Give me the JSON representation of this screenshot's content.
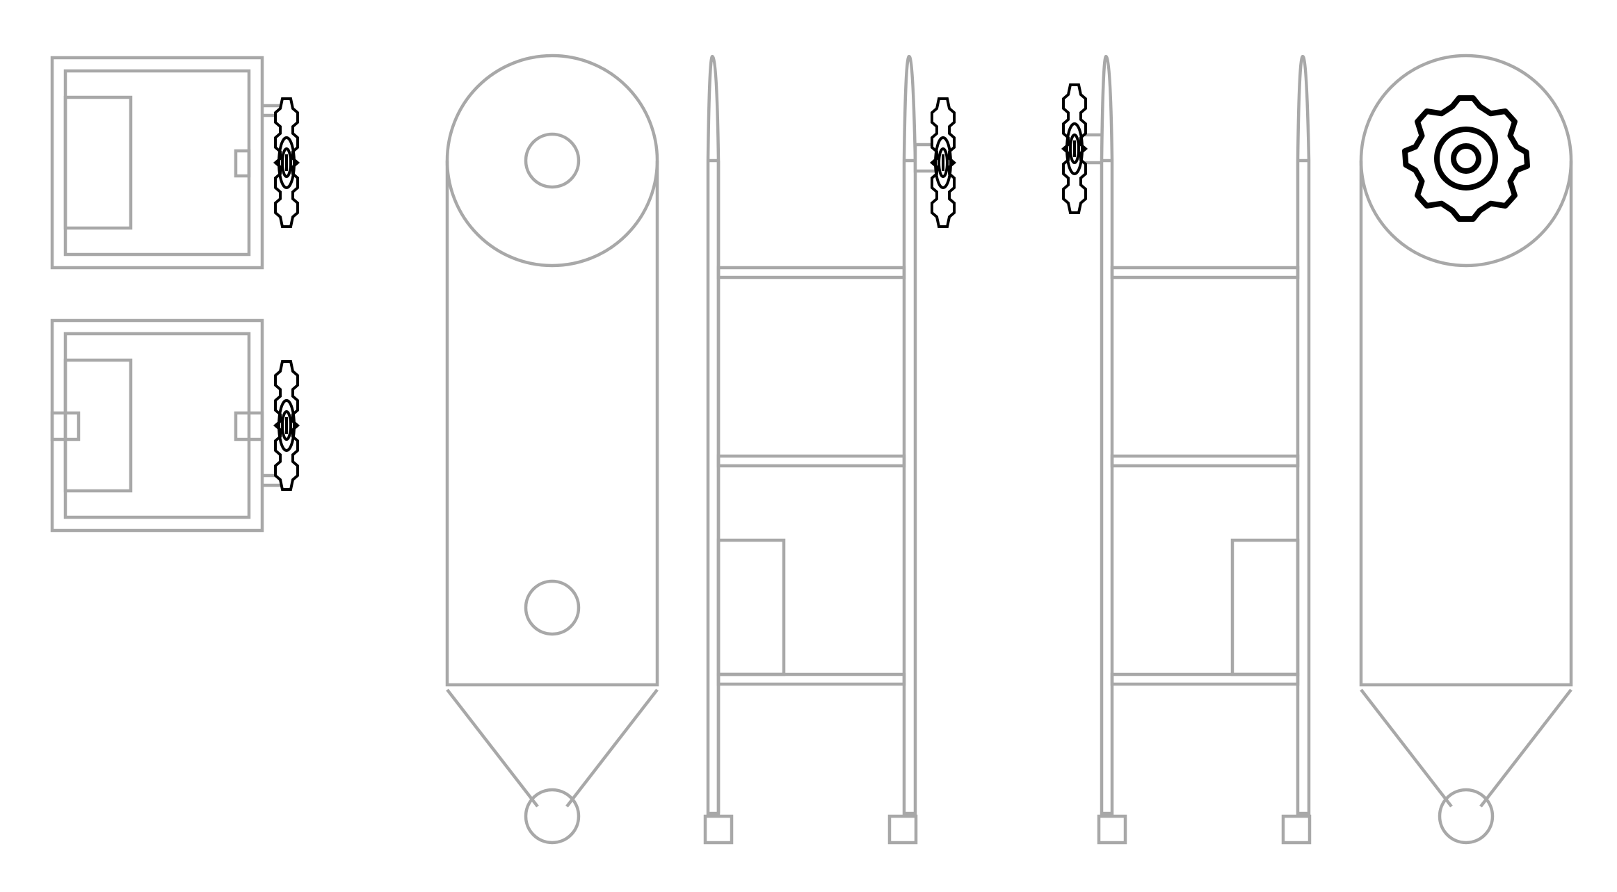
{
  "diagram": {
    "kind": "technical-line-drawing",
    "text_labels": [],
    "colors": {
      "background": "#ffffff",
      "outline": "#a8a8a8",
      "gear": "#000000"
    },
    "icons": [
      "gear-icon"
    ],
    "views": [
      "top-view-upper",
      "top-view-lower",
      "front-view",
      "section-view-left",
      "section-view-right",
      "rear-view"
    ]
  }
}
